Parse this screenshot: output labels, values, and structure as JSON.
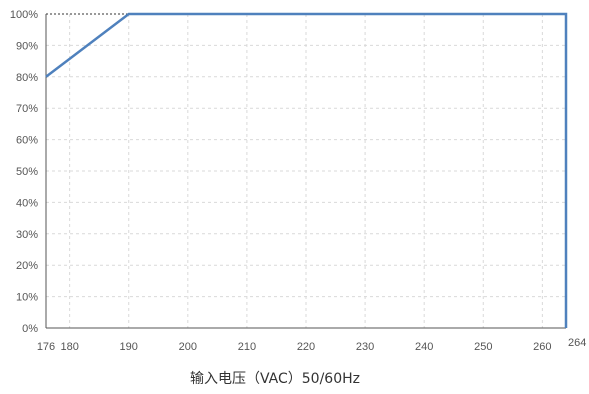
{
  "chart_data": {
    "type": "line",
    "xlabel": "输入电压（VAC）50/60Hz",
    "ylabel": "",
    "xlim": [
      176,
      264
    ],
    "ylim": [
      0,
      100
    ],
    "x_ticks": [
      176,
      180,
      190,
      200,
      210,
      220,
      230,
      240,
      250,
      260,
      264
    ],
    "y_ticks": [
      0,
      10,
      20,
      30,
      40,
      50,
      60,
      70,
      80,
      90,
      100
    ],
    "y_tick_labels": [
      "0%",
      "10%",
      "20%",
      "30%",
      "40%",
      "50%",
      "60%",
      "70%",
      "80%",
      "90%",
      "100%"
    ],
    "grid": true,
    "line_color": "#4f81bd",
    "grid_color": "#d9d9d9",
    "series": [
      {
        "x": [
          176,
          190,
          264,
          264
        ],
        "y": [
          80,
          100,
          100,
          0
        ]
      }
    ]
  }
}
